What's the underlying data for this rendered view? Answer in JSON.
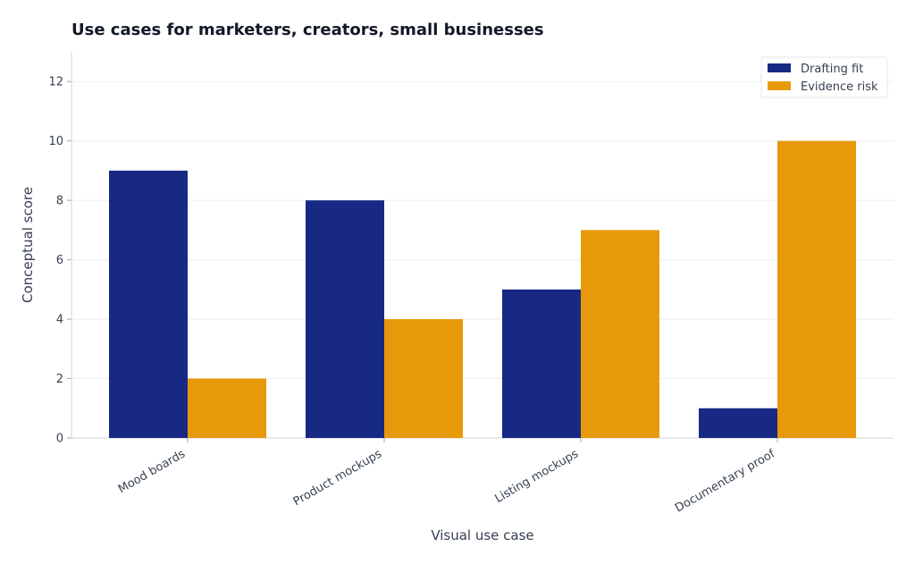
{
  "chart_data": {
    "type": "bar",
    "title": "Use cases for marketers, creators, small businesses",
    "xlabel": "Visual use case",
    "ylabel": "Conceptual score",
    "categories": [
      "Mood boards",
      "Product mockups",
      "Listing mockups",
      "Documentary proof"
    ],
    "series": [
      {
        "name": "Drafting fit",
        "values": [
          9,
          8,
          5,
          1
        ],
        "color": "#172983"
      },
      {
        "name": "Evidence risk",
        "values": [
          2,
          4,
          7,
          10
        ],
        "color": "#E8990A"
      }
    ],
    "ylim": [
      0,
      13
    ],
    "yticks": [
      0,
      2,
      4,
      6,
      8,
      10,
      12
    ],
    "grid": true,
    "legend_position": "top-right"
  }
}
